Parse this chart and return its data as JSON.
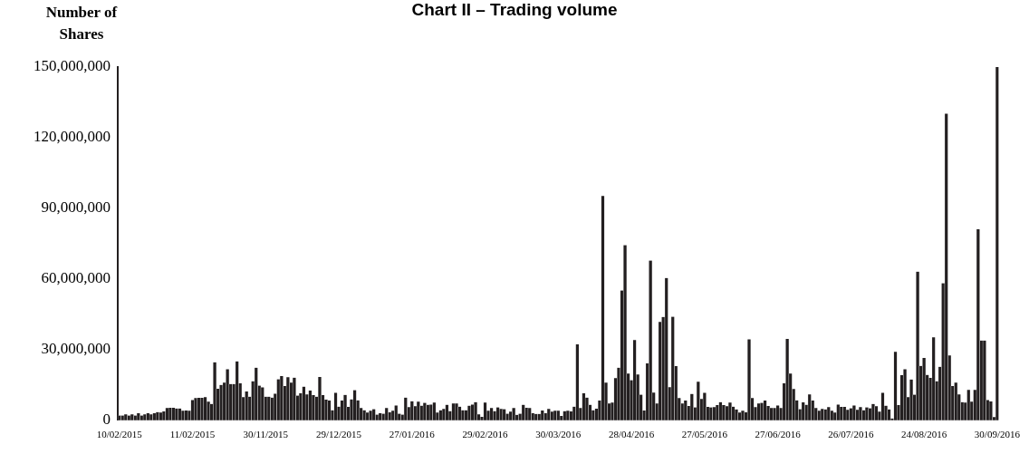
{
  "chart_data": {
    "type": "bar",
    "title": "Chart II – Trading volume",
    "ylabel": "Number of Shares",
    "color": "#231f20",
    "ylim": [
      0,
      150000000
    ],
    "yticks": [
      {
        "value": 0,
        "label": "0"
      },
      {
        "value": 30000000,
        "label": "30,000,000"
      },
      {
        "value": 60000000,
        "label": "60,000,000"
      },
      {
        "value": 90000000,
        "label": "90,000,000"
      },
      {
        "value": 120000000,
        "label": "120,000,000"
      },
      {
        "value": 150000000,
        "label": "150,000,000"
      }
    ],
    "categories": [
      "10/02/2015",
      null,
      null,
      null,
      null,
      null,
      null,
      null,
      null,
      null,
      null,
      null,
      null,
      null,
      null,
      null,
      null,
      null,
      null,
      null,
      null,
      null,
      null,
      "11/02/2015",
      null,
      null,
      null,
      null,
      null,
      null,
      null,
      null,
      null,
      null,
      null,
      null,
      null,
      null,
      null,
      null,
      null,
      null,
      null,
      null,
      null,
      null,
      "30/11/2015",
      null,
      null,
      null,
      null,
      null,
      null,
      null,
      null,
      null,
      null,
      null,
      null,
      null,
      null,
      null,
      null,
      null,
      null,
      null,
      null,
      null,
      null,
      "29/12/2015",
      null,
      null,
      null,
      null,
      null,
      null,
      null,
      null,
      null,
      null,
      null,
      null,
      null,
      null,
      null,
      null,
      null,
      null,
      null,
      null,
      null,
      null,
      "27/01/2016",
      null,
      null,
      null,
      null,
      null,
      null,
      null,
      null,
      null,
      null,
      null,
      null,
      null,
      null,
      null,
      null,
      null,
      null,
      null,
      null,
      null,
      null,
      "29/02/2016",
      null,
      null,
      null,
      null,
      null,
      null,
      null,
      null,
      null,
      null,
      null,
      null,
      null,
      null,
      null,
      null,
      null,
      null,
      null,
      null,
      null,
      null,
      "30/03/2016",
      null,
      null,
      null,
      null,
      null,
      null,
      null,
      null,
      null,
      null,
      null,
      null,
      null,
      null,
      null,
      null,
      null,
      null,
      null,
      null,
      null,
      null,
      "28/04/2016",
      null,
      null,
      null,
      null,
      null,
      null,
      null,
      null,
      null,
      null,
      null,
      null,
      null,
      null,
      null,
      null,
      null,
      null,
      null,
      null,
      null,
      null,
      "27/05/2016",
      null,
      null,
      null,
      null,
      null,
      null,
      null,
      null,
      null,
      null,
      null,
      null,
      null,
      null,
      null,
      null,
      null,
      null,
      null,
      null,
      null,
      null,
      "27/06/2016",
      null,
      null,
      null,
      null,
      null,
      null,
      null,
      null,
      null,
      null,
      null,
      null,
      null,
      null,
      null,
      null,
      null,
      null,
      null,
      null,
      null,
      null,
      "26/07/2016",
      null,
      null,
      null,
      null,
      null,
      null,
      null,
      null,
      null,
      null,
      null,
      null,
      null,
      null,
      null,
      null,
      null,
      null,
      null,
      null,
      null,
      null,
      "24/08/2016",
      null,
      null,
      null,
      null,
      null,
      null,
      null,
      null,
      null,
      null,
      null,
      null,
      null,
      null,
      null,
      null,
      null,
      null,
      null,
      null,
      null,
      null,
      "30/09/2016"
    ],
    "values": [
      2000000,
      2000000,
      2500000,
      2000000,
      2500000,
      2000000,
      3000000,
      2000000,
      2500000,
      3000000,
      2500000,
      3000000,
      3500000,
      3300000,
      3800000,
      5200000,
      5300000,
      5300000,
      5000000,
      5000000,
      4100000,
      4200000,
      4100000,
      8600000,
      9400000,
      9500000,
      9500000,
      9800000,
      7900000,
      6900000,
      24600000,
      13400000,
      15000000,
      16000000,
      21700000,
      15400000,
      15400000,
      25000000,
      15700000,
      9800000,
      12200000,
      10000000,
      16600000,
      22300000,
      14700000,
      14000000,
      10000000,
      10000000,
      9600000,
      11300000,
      17400000,
      18800000,
      14500000,
      18300000,
      16000000,
      18100000,
      10500000,
      11500000,
      14300000,
      11000000,
      12600000,
      10700000,
      10000000,
      18400000,
      10700000,
      8800000,
      8400000,
      4300000,
      11700000,
      5800000,
      8400000,
      10800000,
      5700000,
      8900000,
      12800000,
      8500000,
      5200000,
      4300000,
      3300000,
      4100000,
      4700000,
      2400000,
      3000000,
      2800000,
      5200000,
      3400000,
      4100000,
      6300000,
      2800000,
      2400000,
      9600000,
      5600000,
      8100000,
      6000000,
      7900000,
      6200000,
      7400000,
      6600000,
      6700000,
      7500000,
      3300000,
      4300000,
      4800000,
      6600000,
      3900000,
      7100000,
      7100000,
      5800000,
      4300000,
      4300000,
      6200000,
      6700000,
      7700000,
      2500000,
      1500000,
      7500000,
      4100000,
      5200000,
      3900000,
      5500000,
      4800000,
      4700000,
      2800000,
      3700000,
      5200000,
      2300000,
      2800000,
      6600000,
      5300000,
      5200000,
      3000000,
      2700000,
      2700000,
      4200000,
      3000000,
      4800000,
      3700000,
      4100000,
      4100000,
      1800000,
      3900000,
      4100000,
      3800000,
      5800000,
      32200000,
      5200000,
      11500000,
      9600000,
      6600000,
      4300000,
      4900000,
      8400000,
      95300000,
      16000000,
      7100000,
      7500000,
      17900000,
      22300000,
      55100000,
      74400000,
      19800000,
      17000000,
      34100000,
      19500000,
      10900000,
      4200000,
      24200000,
      67800000,
      11800000,
      7100000,
      41800000,
      43900000,
      60400000,
      14100000,
      44000000,
      23000000,
      9400000,
      7100000,
      8400000,
      6100000,
      11200000,
      5500000,
      16400000,
      9100000,
      11700000,
      5700000,
      5500000,
      5600000,
      6500000,
      7700000,
      6500000,
      6000000,
      7500000,
      5800000,
      4600000,
      3300000,
      4100000,
      3400000,
      34400000,
      9400000,
      5600000,
      7100000,
      7400000,
      8400000,
      6100000,
      5200000,
      5200000,
      6300000,
      5200000,
      15700000,
      34600000,
      19800000,
      13300000,
      8500000,
      4700000,
      7600000,
      6600000,
      11000000,
      8400000,
      5200000,
      4100000,
      4800000,
      4600000,
      5600000,
      4100000,
      3300000,
      6700000,
      5700000,
      5700000,
      4400000,
      5100000,
      6300000,
      4400000,
      5600000,
      4300000,
      5500000,
      5100000,
      6900000,
      6000000,
      3700000,
      11700000,
      6200000,
      4600000,
      800000,
      29100000,
      6500000,
      19200000,
      21700000,
      9800000,
      17300000,
      10900000,
      63100000,
      23100000,
      26500000,
      19300000,
      18000000,
      35200000,
      16600000,
      22700000,
      58200000,
      130200000,
      27500000,
      14500000,
      16000000,
      11000000,
      7700000,
      7500000,
      12900000,
      7900000,
      12900000,
      81100000,
      33900000,
      33900000,
      8600000,
      8000000,
      1400000,
      150000000
    ]
  }
}
